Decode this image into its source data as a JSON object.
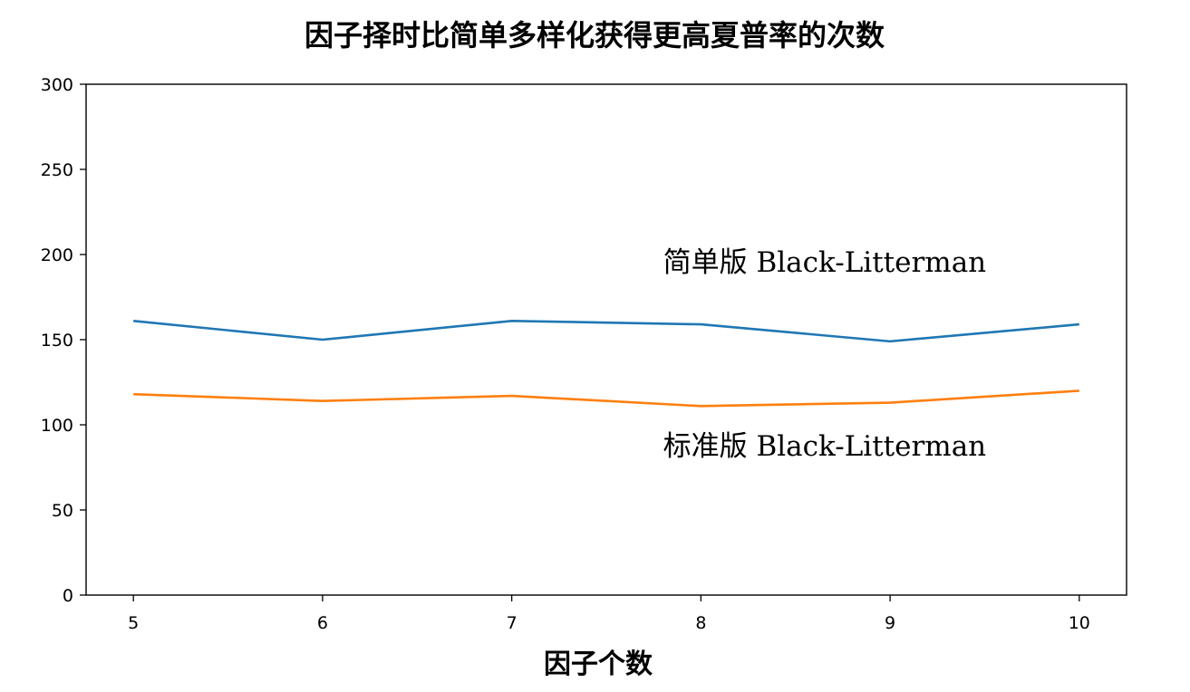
{
  "chart_data": {
    "type": "line",
    "title": "因子择时比简单多样化获得更高夏普率的次数",
    "xlabel": "因子个数",
    "ylabel": "",
    "x": [
      5,
      6,
      7,
      8,
      9,
      10
    ],
    "xticks": [
      "5",
      "6",
      "7",
      "8",
      "9",
      "10"
    ],
    "xlim": [
      4.75,
      10.25
    ],
    "yticks": [
      "0",
      "50",
      "100",
      "150",
      "200",
      "250",
      "300"
    ],
    "ylim": [
      0,
      300
    ],
    "grid": false,
    "legend": "none",
    "series": [
      {
        "values": [
          161,
          150,
          161,
          159,
          149,
          159
        ],
        "color": "#1f77b4"
      },
      {
        "values": [
          118,
          114,
          117,
          111,
          113,
          120
        ],
        "color": "#ff7f0e"
      }
    ],
    "annotations": [
      {
        "text": "简单版 Black-Litterman",
        "x": 7.8,
        "y": 190
      },
      {
        "text": "标准版 Black-Litterman",
        "x": 7.8,
        "y": 82
      }
    ]
  }
}
